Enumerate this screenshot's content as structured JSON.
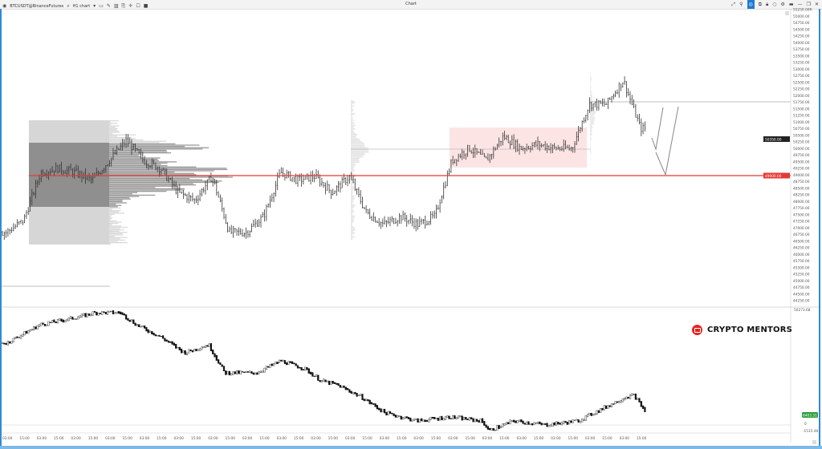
{
  "toolbar": {
    "symbol": "BTCUSDT@BinanceFutures",
    "chart_type": "H1 chart",
    "window_title": "Chart"
  },
  "watermark": {
    "text": "CRYPTO MENTORS",
    "icon": "youtube-icon",
    "color": "#e52620"
  },
  "colors": {
    "red_line": "#e53935",
    "bars": "#333333",
    "range_box": "#fde4e4",
    "frame": "#2f8ad8",
    "delta_tag": "#2e9e3a"
  },
  "price_axis": {
    "labels": [
      "55250.00R",
      "55000.00",
      "54750.00",
      "54500.00",
      "54250.00",
      "54000.00",
      "53750.00",
      "53500.00",
      "53250.00",
      "53000.00",
      "52750.00",
      "52500.00",
      "52250.00",
      "52000.00",
      "51750.00",
      "51500.00",
      "51250.00",
      "51000.00",
      "50750.00",
      "50500.00",
      "50250.00",
      "50000.00",
      "49750.00",
      "49500.00",
      "49250.00",
      "49000.00",
      "48750.00",
      "48500.00",
      "48250.00",
      "48000.00",
      "47750.00",
      "47500.00",
      "47250.00",
      "47000.00",
      "46750.00",
      "46500.00",
      "46250.00",
      "46000.00",
      "45750.00",
      "45500.00",
      "45250.00",
      "45000.00",
      "44750.00",
      "44500.00",
      "44250.00"
    ],
    "current_price_tag": "50350.00",
    "red_level_tag": "49000.00"
  },
  "lower_axis": {
    "top": "50273.68",
    "zero": "0",
    "bottom": "-1515.46",
    "current_tag": "6403.31"
  },
  "time_axis": {
    "labels": [
      "03:00",
      "15:00",
      "03:00",
      "15:00",
      "03:00",
      "15:00",
      "03:00",
      "15:00",
      "03:00",
      "15:00",
      "03:00",
      "15:00",
      "03:00",
      "15:00",
      "03:00",
      "15:00",
      "03:00",
      "15:00",
      "03:00",
      "15:00",
      "03:00",
      "15:00",
      "03:00",
      "15:00",
      "03:00",
      "15:00",
      "03:00",
      "15:00",
      "03:00",
      "15:00",
      "03:00",
      "15:00",
      "03:00",
      "15:00",
      "03:00",
      "15:00",
      "03:00",
      "15:00"
    ]
  },
  "chart_data": {
    "type": "ohlc",
    "price_levels": {
      "red_support": 49000,
      "range_high": 50750,
      "range_low": 49300,
      "resistance": 51750,
      "poc_mid": 50000
    },
    "price_path": [
      46830,
      47280,
      49100,
      49250,
      49100,
      48800,
      49550,
      50310,
      49550,
      49250,
      48340,
      48040,
      48950,
      46830,
      46830,
      47430,
      49100,
      48800,
      48950,
      48340,
      48950,
      47580,
      47130,
      47430,
      47130,
      47430,
      49550,
      50010,
      49550,
      50460,
      50010,
      50160,
      50010,
      50010,
      51670,
      51670,
      52580,
      50760
    ],
    "delta_path": [
      35623,
      43459,
      46867,
      48570,
      48570,
      43459,
      38349,
      31535,
      34942,
      23016,
      23016,
      28127,
      24720,
      19609,
      17905,
      12795,
      5981,
      2574,
      4278,
      2574,
      -1515,
      2574,
      870,
      2574,
      7685,
      12795,
      13476,
      5981
    ],
    "delta_range": [
      -1515.46,
      50273.68
    ]
  }
}
